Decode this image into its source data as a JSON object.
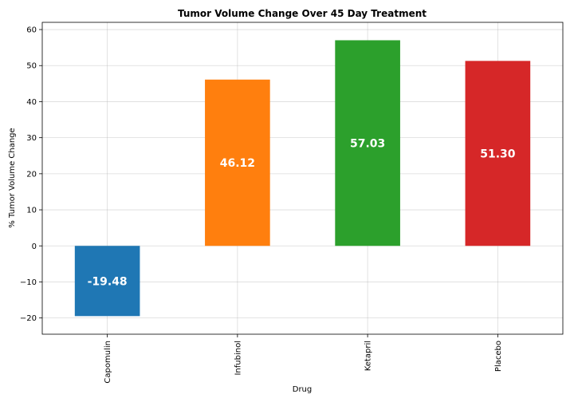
{
  "chart_data": {
    "type": "bar",
    "title": "Tumor Volume Change Over 45 Day Treatment",
    "xlabel": "Drug",
    "ylabel": "% Tumor Volume Change",
    "categories": [
      "Capomulin",
      "Infubinol",
      "Ketapril",
      "Placebo"
    ],
    "values": [
      -19.48,
      46.12,
      57.03,
      51.3
    ],
    "data_labels": [
      "-19.48",
      "46.12",
      "57.03",
      "51.30"
    ],
    "colors": [
      "#1f77b4",
      "#ff7f0e",
      "#2ca02c",
      "#d62728"
    ],
    "ylim": [
      -24.5,
      62
    ],
    "yticks": [
      -20,
      -10,
      0,
      10,
      20,
      30,
      40,
      50,
      60
    ],
    "ytick_labels": [
      "−20",
      "−10",
      "0",
      "10",
      "20",
      "30",
      "40",
      "50",
      "60"
    ],
    "grid": true,
    "legend": "none"
  }
}
